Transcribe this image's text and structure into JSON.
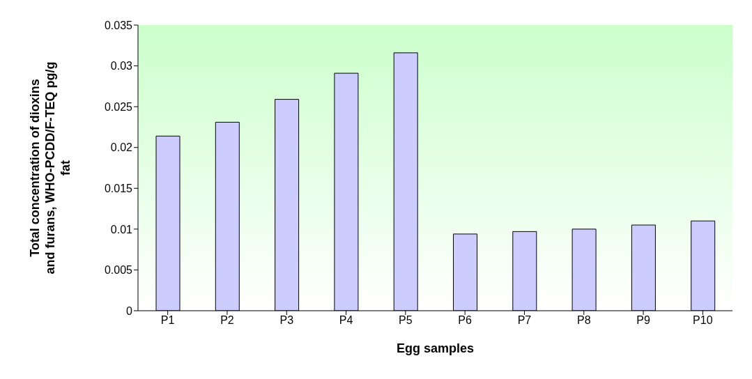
{
  "chart_data": {
    "type": "bar",
    "xlabel": "Egg samples",
    "ylabel": "Total concentration of dioxins and furans, WHO-PCDD/F-TEQ pg/g fat",
    "categories": [
      "P1",
      "P2",
      "P3",
      "P4",
      "P5",
      "P6",
      "P7",
      "P8",
      "P9",
      "P10"
    ],
    "values": [
      0.0214,
      0.0231,
      0.0259,
      0.0291,
      0.0316,
      0.0094,
      0.0097,
      0.01,
      0.0105,
      0.011
    ],
    "color": "#ccccff",
    "ylim": [
      0,
      0.035
    ],
    "yticks": [
      0,
      0.005,
      0.01,
      0.015,
      0.02,
      0.025,
      0.03,
      0.035
    ],
    "grid": false,
    "legend": false
  }
}
